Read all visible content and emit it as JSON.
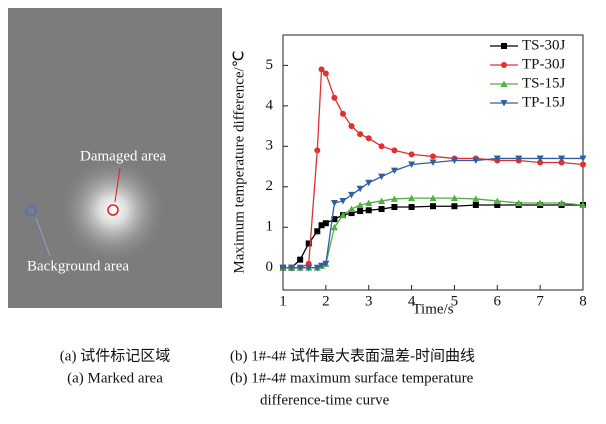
{
  "panel_a": {
    "labels": [
      "Damaged area",
      "Background area"
    ],
    "caption": [
      "(a) 试件标记区域",
      "(a) Marked area"
    ]
  },
  "caption_b": [
    "(b) 1#-4# 试件最大表面温差-时间曲线",
    "(b) 1#-4# maximum surface temperature",
    "difference-time curve"
  ],
  "chart_data": {
    "type": "line",
    "xlabel": "Time/s",
    "ylabel": "Maximum temperature difference/℃",
    "x": [
      1,
      1.2,
      1.4,
      1.6,
      1.8,
      1.9,
      2,
      2.2,
      2.4,
      2.6,
      2.8,
      3,
      3.3,
      3.6,
      4,
      4.5,
      5,
      5.5,
      6,
      6.5,
      7,
      7.5,
      8
    ],
    "series": [
      {
        "name": "TS-30J",
        "color": "#000000",
        "marker": "square",
        "values": [
          0,
          0,
          0.2,
          0.6,
          0.9,
          1.05,
          1.1,
          1.2,
          1.3,
          1.35,
          1.4,
          1.42,
          1.45,
          1.5,
          1.5,
          1.52,
          1.52,
          1.55,
          1.55,
          1.55,
          1.55,
          1.55,
          1.55
        ]
      },
      {
        "name": "TP-30J",
        "color": "#e03030",
        "marker": "circle",
        "values": [
          0,
          0,
          0,
          0.1,
          2.9,
          4.9,
          4.8,
          4.2,
          3.8,
          3.5,
          3.3,
          3.2,
          3.0,
          2.9,
          2.8,
          2.75,
          2.7,
          2.7,
          2.65,
          2.65,
          2.6,
          2.6,
          2.55
        ]
      },
      {
        "name": "TS-15J",
        "color": "#50b040",
        "marker": "triangle-up",
        "values": [
          0,
          0,
          0,
          0,
          0,
          0.05,
          0.1,
          1.0,
          1.3,
          1.45,
          1.55,
          1.6,
          1.65,
          1.7,
          1.72,
          1.72,
          1.72,
          1.7,
          1.65,
          1.6,
          1.6,
          1.6,
          1.55
        ]
      },
      {
        "name": "TP-15J",
        "color": "#3060a0",
        "marker": "triangle-down",
        "values": [
          0,
          0,
          0,
          0,
          0,
          0.05,
          0.1,
          1.6,
          1.65,
          1.8,
          1.95,
          2.1,
          2.25,
          2.4,
          2.55,
          2.6,
          2.65,
          2.65,
          2.7,
          2.7,
          2.7,
          2.7,
          2.7
        ]
      }
    ],
    "xlim": [
      1,
      8
    ],
    "ylim": [
      -0.55,
      5.75
    ],
    "xticks": [
      1,
      2,
      3,
      4,
      5,
      6,
      7,
      8
    ],
    "yticks": [
      0,
      1,
      2,
      3,
      4,
      5
    ],
    "grid": false,
    "legend": "top-right"
  }
}
